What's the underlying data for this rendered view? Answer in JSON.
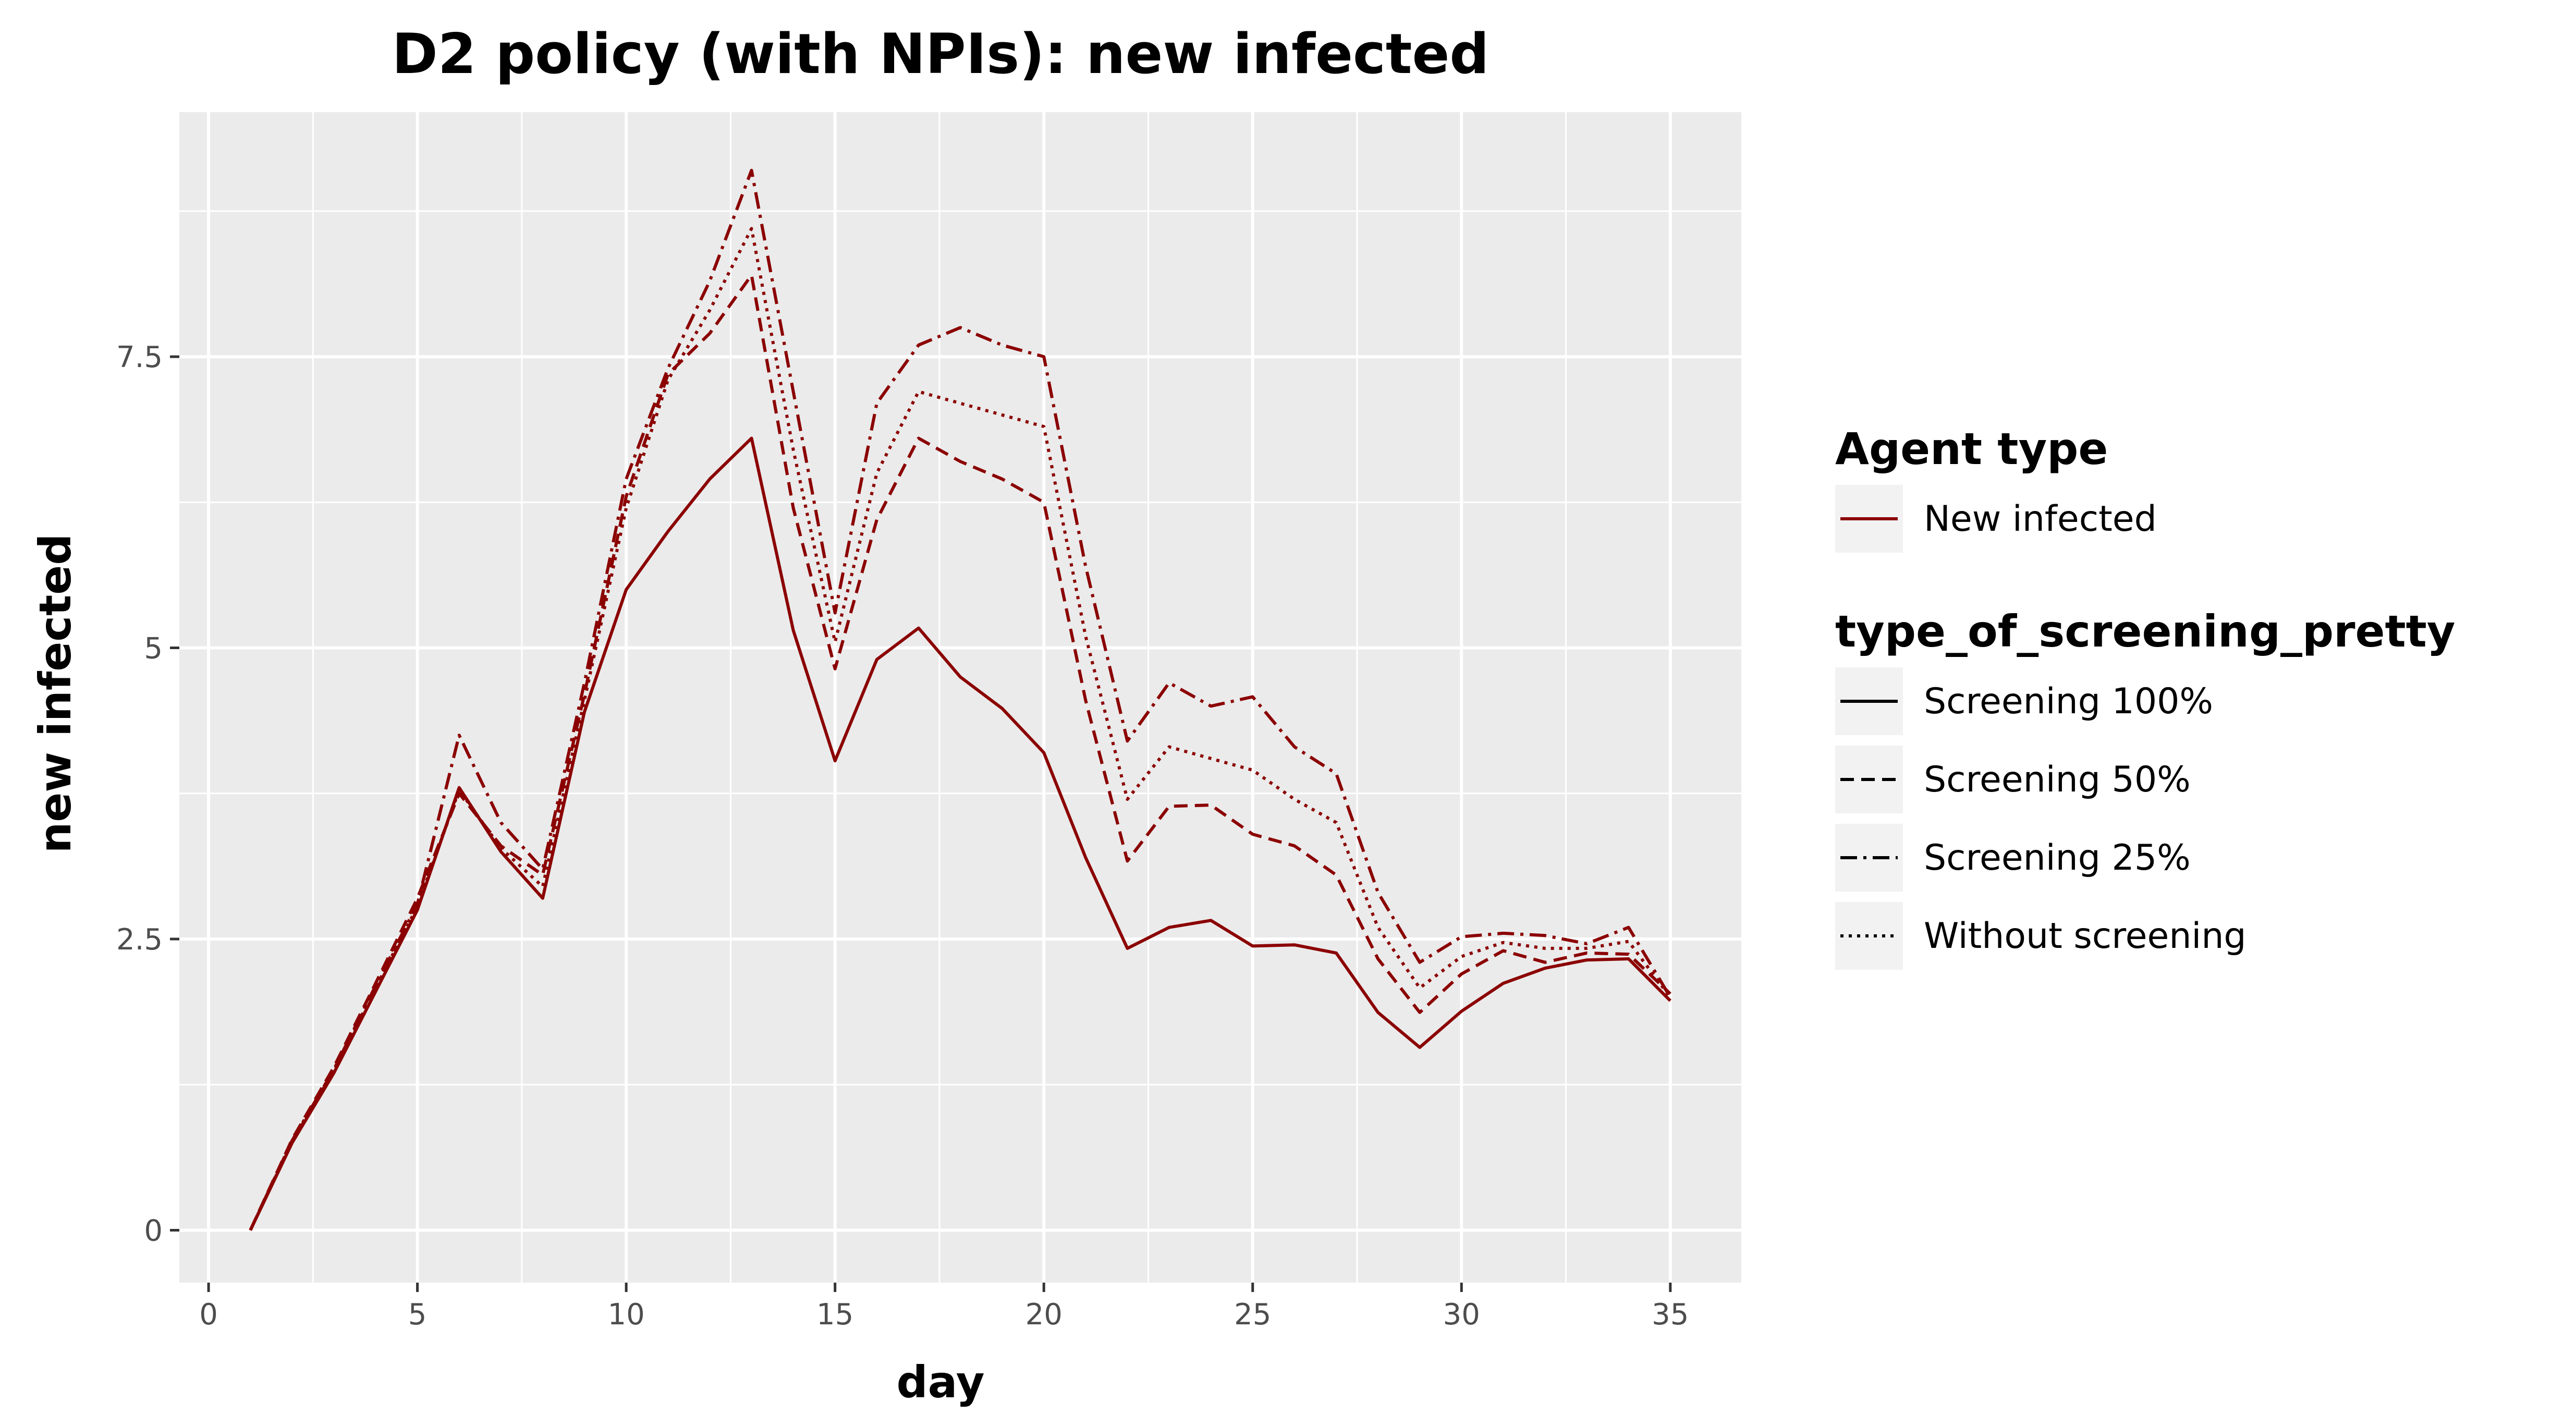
{
  "chart_data": {
    "type": "line",
    "title": "D2 policy (with NPIs): new infected",
    "xlabel": "day",
    "ylabel": "new infected",
    "xlim": [
      -0.7,
      36.7
    ],
    "ylim": [
      -0.45,
      9.6
    ],
    "x_ticks": [
      0,
      5,
      10,
      15,
      20,
      25,
      30,
      35
    ],
    "x_tick_labels": [
      "0",
      "5",
      "10",
      "15",
      "20",
      "25",
      "30",
      "35"
    ],
    "y_ticks": [
      0,
      2.5,
      5,
      7.5
    ],
    "y_tick_labels": [
      "0",
      "2.5",
      "5",
      "7.5"
    ],
    "grid": true,
    "legend_position": "right",
    "line_color": "#8b0000",
    "panel_color": "#ebebeb",
    "grid_color": "#ffffff",
    "legend": {
      "color_title": "Agent type",
      "color_entries": [
        {
          "label": "New infected",
          "color": "#8b0000"
        }
      ],
      "linetype_title": "type_of_screening_pretty",
      "linetype_entries": [
        {
          "label": "Screening 100%",
          "linetype": "solid"
        },
        {
          "label": "Screening 50%",
          "linetype": "dashed"
        },
        {
          "label": "Screening 25%",
          "linetype": "dashdot"
        },
        {
          "label": "Without screening",
          "linetype": "dotted"
        }
      ]
    },
    "x": [
      1,
      2,
      3,
      4,
      5,
      6,
      7,
      8,
      9,
      10,
      11,
      12,
      13,
      14,
      15,
      16,
      17,
      18,
      19,
      20,
      21,
      22,
      23,
      24,
      25,
      26,
      27,
      28,
      29,
      30,
      31,
      32,
      33,
      34,
      35
    ],
    "series": [
      {
        "name": "Screening 100%",
        "linetype": "solid",
        "values": [
          0,
          0.75,
          1.35,
          2.05,
          2.75,
          3.8,
          3.25,
          2.85,
          4.45,
          5.5,
          6.0,
          6.45,
          6.8,
          5.15,
          4.03,
          4.9,
          5.17,
          4.75,
          4.48,
          4.1,
          3.2,
          2.42,
          2.6,
          2.66,
          2.44,
          2.45,
          2.38,
          1.87,
          1.57,
          1.88,
          2.12,
          2.25,
          2.32,
          2.33,
          1.97
        ]
      },
      {
        "name": "Screening 50%",
        "linetype": "dashed",
        "values": [
          0,
          0.78,
          1.4,
          2.12,
          2.85,
          3.75,
          3.3,
          3.05,
          4.6,
          6.3,
          7.35,
          7.7,
          8.2,
          6.2,
          4.82,
          6.1,
          6.8,
          6.6,
          6.45,
          6.25,
          4.55,
          3.17,
          3.64,
          3.65,
          3.4,
          3.3,
          3.05,
          2.33,
          1.87,
          2.2,
          2.4,
          2.3,
          2.38,
          2.37,
          2.03
        ]
      },
      {
        "name": "Screening 25%",
        "linetype": "dashdot",
        "values": [
          0,
          0.77,
          1.38,
          2.1,
          2.8,
          4.25,
          3.5,
          3.1,
          4.7,
          6.45,
          7.4,
          8.15,
          9.1,
          7.2,
          5.3,
          7.1,
          7.6,
          7.75,
          7.6,
          7.5,
          5.7,
          4.2,
          4.7,
          4.5,
          4.58,
          4.15,
          3.92,
          2.9,
          2.3,
          2.52,
          2.55,
          2.53,
          2.46,
          2.6,
          2.0
        ]
      },
      {
        "name": "Without screening",
        "linetype": "dotted",
        "values": [
          0,
          0.76,
          1.37,
          2.08,
          2.78,
          3.78,
          3.28,
          2.95,
          4.55,
          6.2,
          7.3,
          7.9,
          8.6,
          6.7,
          5.05,
          6.5,
          7.2,
          7.1,
          7.0,
          6.9,
          5.1,
          3.7,
          4.15,
          4.05,
          3.95,
          3.7,
          3.5,
          2.6,
          2.08,
          2.35,
          2.47,
          2.42,
          2.42,
          2.48,
          2.0
        ]
      }
    ]
  }
}
